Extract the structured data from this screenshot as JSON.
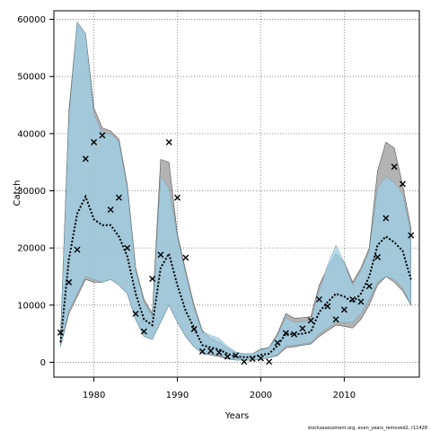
{
  "chart_data": {
    "type": "line",
    "xlabel": "Years",
    "ylabel": "Catch",
    "xlim": [
      1975.2,
      2019.0
    ],
    "ylim": [
      -2600,
      61500
    ],
    "x_ticks": [
      1980,
      1990,
      2000,
      2010
    ],
    "y_ticks": [
      0,
      10000,
      20000,
      30000,
      40000,
      50000,
      60000
    ],
    "grid": true,
    "caption": "stockassessment.org, even_years_removed2, r11428",
    "colors": {
      "outer_band": "#9a9a9a",
      "inner_band": "#9ccfe6",
      "median_line": "#000000",
      "observed_marker": "#000000"
    },
    "years": [
      1976,
      1977,
      1978,
      1979,
      1980,
      1981,
      1982,
      1983,
      1984,
      1985,
      1986,
      1987,
      1988,
      1989,
      1990,
      1991,
      1992,
      1993,
      1994,
      1995,
      1996,
      1997,
      1998,
      1999,
      2000,
      2001,
      2002,
      2003,
      2004,
      2005,
      2006,
      2007,
      2008,
      2009,
      2010,
      2011,
      2012,
      2013,
      2014,
      2015,
      2016,
      2017,
      2018
    ],
    "series": [
      {
        "name": "grey upper",
        "values": [
          4500,
          44000,
          59500,
          57500,
          44500,
          41000,
          40500,
          39000,
          31000,
          16500,
          11000,
          8500,
          35500,
          35000,
          22500,
          16000,
          10000,
          5500,
          4200,
          3500,
          2500,
          1700,
          1500,
          1500,
          2300,
          2600,
          5000,
          8500,
          7700,
          7800,
          8000,
          13500,
          16500,
          19000,
          17500,
          14000,
          16500,
          20000,
          33500,
          38500,
          37500,
          31000,
          23500
        ]
      },
      {
        "name": "grey lower",
        "values": [
          2800,
          8500,
          11500,
          14500,
          14000,
          14000,
          14500,
          13500,
          12000,
          7500,
          4500,
          4000,
          7000,
          10000,
          7000,
          4500,
          2700,
          1500,
          1300,
          1000,
          600,
          400,
          400,
          400,
          500,
          800,
          1200,
          2500,
          2700,
          3000,
          3200,
          4500,
          5500,
          6500,
          6300,
          6000,
          7500,
          10000,
          13500,
          15000,
          14000,
          12500,
          10000
        ]
      },
      {
        "name": "blue upper",
        "values": [
          4500,
          43000,
          59500,
          57500,
          43500,
          40000,
          40000,
          38500,
          30500,
          16000,
          10500,
          8000,
          32500,
          30500,
          22000,
          15500,
          9500,
          5300,
          4700,
          4200,
          2800,
          1800,
          1500,
          1500,
          2200,
          2500,
          4700,
          7800,
          7000,
          7100,
          7300,
          12500,
          17000,
          20500,
          17500,
          13500,
          16000,
          19500,
          30500,
          32500,
          31500,
          29500,
          22500
        ]
      },
      {
        "name": "blue lower",
        "values": [
          2800,
          9000,
          12000,
          15000,
          14500,
          14000,
          14500,
          13500,
          12000,
          7500,
          4500,
          4000,
          7000,
          10000,
          7000,
          4500,
          2700,
          1500,
          1500,
          1300,
          700,
          400,
          400,
          400,
          500,
          800,
          1300,
          2800,
          3000,
          3200,
          3500,
          5000,
          6000,
          7000,
          7000,
          7000,
          8500,
          11000,
          14000,
          15000,
          14500,
          13000,
          10000
        ]
      },
      {
        "name": "median",
        "values": [
          3500,
          18000,
          26000,
          29000,
          25000,
          24000,
          24000,
          22000,
          18500,
          12000,
          7500,
          6500,
          16500,
          19000,
          13500,
          9000,
          6000,
          3000,
          2600,
          2200,
          1500,
          1000,
          900,
          900,
          1300,
          1500,
          2900,
          5000,
          4900,
          5000,
          5300,
          8800,
          10500,
          12000,
          11500,
          10500,
          12000,
          15000,
          20500,
          22000,
          21000,
          19500,
          14500
        ]
      }
    ],
    "observed": {
      "x": [
        1976,
        1977,
        1978,
        1979,
        1980,
        1981,
        1982,
        1983,
        1984,
        1985,
        1986,
        1987,
        1988,
        1989,
        1990,
        1991,
        1992,
        1993,
        1994,
        1995,
        1996,
        1997,
        1998,
        1999,
        2000,
        2001,
        2002,
        2003,
        2004,
        2005,
        2006,
        2007,
        2008,
        2009,
        2010,
        2011,
        2012,
        2013,
        2014,
        2015,
        2016,
        2017,
        2018
      ],
      "y": [
        5200,
        14000,
        19700,
        35600,
        38500,
        39700,
        26700,
        28800,
        20000,
        8500,
        5400,
        14600,
        18800,
        38500,
        28800,
        18300,
        5800,
        1900,
        2000,
        1700,
        1000,
        1200,
        100,
        600,
        700,
        100,
        3400,
        5100,
        4900,
        5900,
        7300,
        11000,
        9800,
        7500,
        9200,
        11000,
        10600,
        13300,
        18400,
        25200,
        34200,
        31200,
        22200
      ]
    }
  }
}
